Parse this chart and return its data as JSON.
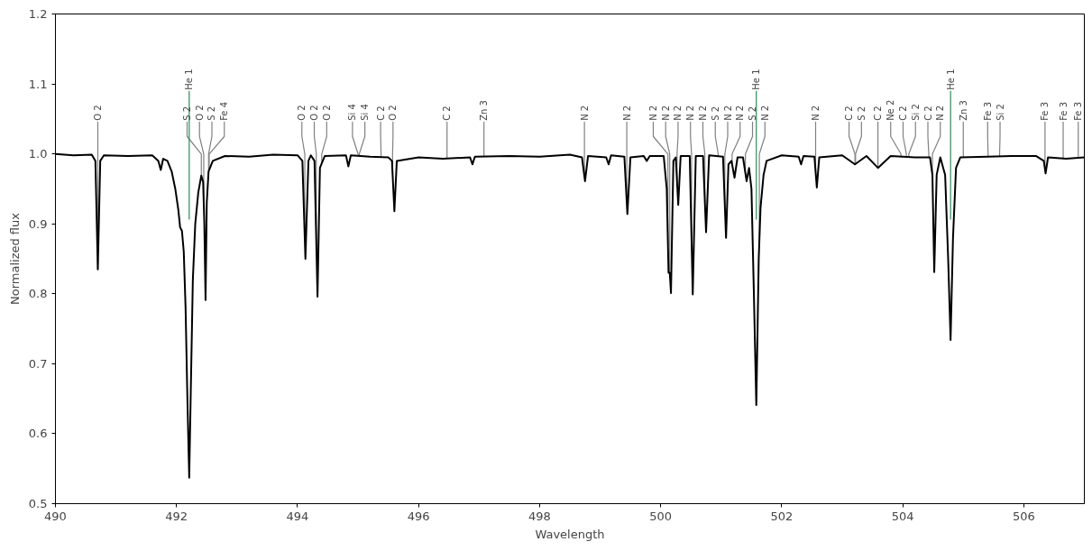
{
  "chart_data": {
    "type": "line",
    "xlabel": "Wavelength",
    "ylabel": "Normalized flux",
    "xlim": [
      490,
      507
    ],
    "ylim": [
      0.5,
      1.2
    ],
    "xticks": [
      490,
      492,
      494,
      496,
      498,
      500,
      502,
      504,
      506
    ],
    "yticks": [
      0.5,
      0.6,
      0.7,
      0.8,
      0.9,
      {
        "value": 1,
        "label": "1.0"
      },
      1.1,
      1.2
    ],
    "grid": false,
    "series": [
      {
        "color": "#000000",
        "x": [
          490.0,
          490.3,
          490.6,
          490.66,
          490.7,
          490.74,
          490.8,
          491.2,
          491.6,
          491.7,
          491.74,
          491.78,
          491.85,
          491.92,
          491.98,
          492.03,
          492.06,
          492.09,
          492.12,
          492.15,
          492.18,
          492.21,
          492.24,
          492.27,
          492.31,
          492.36,
          492.41,
          492.44,
          492.46,
          492.48,
          492.5,
          492.53,
          492.6,
          492.8,
          493.2,
          493.6,
          494.0,
          494.08,
          494.13,
          494.18,
          494.22,
          494.28,
          494.33,
          494.37,
          494.45,
          494.8,
          494.84,
          494.88,
          495.2,
          495.5,
          495.56,
          495.6,
          495.64,
          496.0,
          496.4,
          496.85,
          496.89,
          496.93,
          497.5,
          498.0,
          498.5,
          498.7,
          498.75,
          498.8,
          499.1,
          499.14,
          499.18,
          499.4,
          499.45,
          499.5,
          499.72,
          499.77,
          499.82,
          500.05,
          500.1,
          500.13,
          500.15,
          500.17,
          500.21,
          500.25,
          500.29,
          500.33,
          500.48,
          500.53,
          500.58,
          500.7,
          500.75,
          500.8,
          501.03,
          501.08,
          501.12,
          501.17,
          501.22,
          501.27,
          501.36,
          501.42,
          501.46,
          501.5,
          501.54,
          501.58,
          501.62,
          501.65,
          501.7,
          501.75,
          502.0,
          502.28,
          502.32,
          502.36,
          502.54,
          502.58,
          502.62,
          503.0,
          503.21,
          503.4,
          503.59,
          503.8,
          504.2,
          504.45,
          504.49,
          504.52,
          504.56,
          504.62,
          504.7,
          504.75,
          504.79,
          504.83,
          504.88,
          504.95,
          505.4,
          505.8,
          506.2,
          506.33,
          506.36,
          506.4,
          506.7,
          507.0
        ],
        "values": [
          1.0,
          0.998,
          0.999,
          0.99,
          0.835,
          0.99,
          0.998,
          0.997,
          0.998,
          0.99,
          0.977,
          0.993,
          0.99,
          0.975,
          0.95,
          0.92,
          0.895,
          0.89,
          0.86,
          0.78,
          0.65,
          0.537,
          0.68,
          0.82,
          0.9,
          0.945,
          0.969,
          0.96,
          0.9,
          0.791,
          0.93,
          0.975,
          0.99,
          0.997,
          0.996,
          0.999,
          0.998,
          0.99,
          0.85,
          0.99,
          0.998,
          0.99,
          0.796,
          0.98,
          0.997,
          0.998,
          0.982,
          0.998,
          0.996,
          0.995,
          0.99,
          0.918,
          0.99,
          0.995,
          0.993,
          0.995,
          0.985,
          0.996,
          0.997,
          0.996,
          0.999,
          0.995,
          0.961,
          0.997,
          0.995,
          0.985,
          0.998,
          0.996,
          0.914,
          0.995,
          0.997,
          0.99,
          0.997,
          0.997,
          0.95,
          0.83,
          0.83,
          0.801,
          0.99,
          0.995,
          0.927,
          0.997,
          0.997,
          0.799,
          0.997,
          0.997,
          0.888,
          0.998,
          0.996,
          0.88,
          0.985,
          0.99,
          0.966,
          0.995,
          0.995,
          0.961,
          0.98,
          0.95,
          0.8,
          0.641,
          0.85,
          0.923,
          0.97,
          0.99,
          0.998,
          0.996,
          0.985,
          0.997,
          0.996,
          0.952,
          0.995,
          0.998,
          0.985,
          0.997,
          0.98,
          0.997,
          0.995,
          0.995,
          0.97,
          0.831,
          0.97,
          0.995,
          0.97,
          0.85,
          0.734,
          0.88,
          0.98,
          0.995,
          0.996,
          0.997,
          0.997,
          0.99,
          0.972,
          0.995,
          0.993,
          0.995
        ]
      }
    ],
    "ref_lines": [
      {
        "axis": "x",
        "value": 492.21,
        "label": "He 1",
        "color": "#2e8b57"
      },
      {
        "axis": "x",
        "value": 501.58,
        "label": "He 1",
        "color": "#2e8b57"
      },
      {
        "axis": "x",
        "value": 504.79,
        "label": "He 1",
        "color": "#2e8b57"
      }
    ],
    "annotations": [
      {
        "text": "O 2",
        "x": 490.7,
        "y": 0.835
      },
      {
        "text": "S 2",
        "x": 492.41,
        "y": 0.969
      },
      {
        "text": "O 2",
        "x": 492.45,
        "y": 0.93
      },
      {
        "text": "S 2",
        "x": 492.53,
        "y": 0.975
      },
      {
        "text": "Fe 4",
        "x": 492.54,
        "y": 0.977
      },
      {
        "text": "O 2",
        "x": 494.12,
        "y": 0.878
      },
      {
        "text": "O 2",
        "x": 494.31,
        "y": 0.874
      },
      {
        "text": "O 2",
        "x": 494.4,
        "y": 0.986
      },
      {
        "text": "Si 4",
        "x": 495.0,
        "y": 0.997
      },
      {
        "text": "Si 4",
        "x": 495.02,
        "y": 0.997
      },
      {
        "text": "C 2",
        "x": 495.38,
        "y": 0.995
      },
      {
        "text": "O 2",
        "x": 495.57,
        "y": 0.972
      },
      {
        "text": "C 2",
        "x": 496.47,
        "y": 0.993
      },
      {
        "text": "Zn 3",
        "x": 497.08,
        "y": 0.996
      },
      {
        "text": "N 2",
        "x": 498.74,
        "y": 0.968
      },
      {
        "text": "N 2",
        "x": 499.44,
        "y": 0.93
      },
      {
        "text": "N 2",
        "x": 500.12,
        "y": 0.87
      },
      {
        "text": "N 2",
        "x": 500.15,
        "y": 0.83
      },
      {
        "text": "N 2",
        "x": 500.27,
        "y": 0.961
      },
      {
        "text": "N 2",
        "x": 500.51,
        "y": 0.878
      },
      {
        "text": "N 2",
        "x": 500.73,
        "y": 0.932
      },
      {
        "text": "S 2",
        "x": 500.95,
        "y": 0.997
      },
      {
        "text": "N 2",
        "x": 501.06,
        "y": 0.926
      },
      {
        "text": "N 2",
        "x": 501.18,
        "y": 0.985
      },
      {
        "text": "S 2",
        "x": 501.4,
        "y": 0.972
      },
      {
        "text": "N 2",
        "x": 501.63,
        "y": 0.874
      },
      {
        "text": "N 2",
        "x": 502.56,
        "y": 0.974
      },
      {
        "text": "C 2",
        "x": 503.21,
        "y": 0.985
      },
      {
        "text": "S 2",
        "x": 503.22,
        "y": 0.986
      },
      {
        "text": "C 2",
        "x": 503.59,
        "y": 0.98
      },
      {
        "text": "Ne 2",
        "x": 503.97,
        "y": 0.996
      },
      {
        "text": "C 2",
        "x": 504.06,
        "y": 0.996
      },
      {
        "text": "Si 2",
        "x": 504.1,
        "y": 0.996
      },
      {
        "text": "C 2",
        "x": 504.43,
        "y": 0.995
      },
      {
        "text": "N 2",
        "x": 504.49,
        "y": 0.97
      },
      {
        "text": "Zn 3",
        "x": 505.0,
        "y": 0.995
      },
      {
        "text": "Fe 3",
        "x": 505.41,
        "y": 0.996
      },
      {
        "text": "Si 2",
        "x": 505.6,
        "y": 0.997
      },
      {
        "text": "Fe 3",
        "x": 506.35,
        "y": 0.978
      },
      {
        "text": "Fe 3",
        "x": 506.65,
        "y": 0.993
      },
      {
        "text": "Fe 3",
        "x": 506.9,
        "y": 0.994
      }
    ]
  }
}
